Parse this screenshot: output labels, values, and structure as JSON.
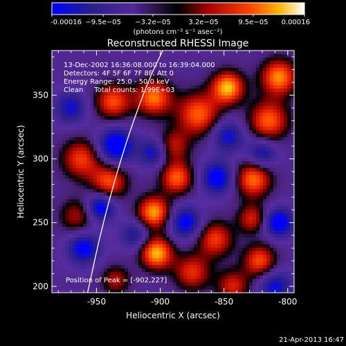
{
  "chart_data": {
    "type": "heatmap",
    "title": "Reconstructed RHESSI Image",
    "xlabel": "Heliocentric X (arcsec)",
    "ylabel": "Heliocentric Y (arcsec)",
    "xlim": [
      -985,
      -795
    ],
    "ylim": [
      195,
      385
    ],
    "xticks": [
      -950,
      -900,
      -850,
      -800
    ],
    "xtick_labels": [
      "-950",
      "-900",
      "-850",
      "-800"
    ],
    "yticks": [
      200,
      250,
      300,
      350
    ],
    "ytick_labels": [
      "200",
      "250",
      "300",
      "350"
    ],
    "colorbar": {
      "min": -0.00016,
      "max": 0.00016,
      "ticks": [
        -0.00016,
        -9.5e-05,
        -3.2e-05,
        3.2e-05,
        9.5e-05,
        0.00016
      ],
      "tick_labels": [
        "-0.00016",
        "−9.5e−05",
        "−3.2e−05",
        "3.2e−05",
        "9.5e−05",
        "0.00016"
      ],
      "units": "(photons cm⁻² s⁻¹ asec⁻²)"
    },
    "annotations": {
      "time_range": "13-Dec-2002 16:36:08.000 to 16:39:04.000",
      "detectors": "Detectors: 4F 5F 6F 7F 8F, Att 0",
      "energy": "Energy Range: 25.0 - 50.0 keV",
      "clean": "Clean     Total counts: 1.99E+03",
      "peak": "Position of Peak = [-902,227]",
      "date_stamp": "21-Apr-2013 16:47"
    },
    "peak": {
      "x": -902,
      "y": 227
    },
    "blobs": [
      {
        "x": -903,
        "y": 226,
        "r": 9,
        "v": 1.0
      },
      {
        "x": -905,
        "y": 258,
        "r": 9,
        "v": 0.95
      },
      {
        "x": -887,
        "y": 285,
        "r": 9,
        "v": 0.8
      },
      {
        "x": -940,
        "y": 282,
        "r": 10,
        "v": 0.75
      },
      {
        "x": -962,
        "y": 300,
        "r": 11,
        "v": 0.7
      },
      {
        "x": -937,
        "y": 345,
        "r": 10,
        "v": 0.75
      },
      {
        "x": -905,
        "y": 348,
        "r": 10,
        "v": 0.85
      },
      {
        "x": -870,
        "y": 335,
        "r": 12,
        "v": 0.8
      },
      {
        "x": -847,
        "y": 356,
        "r": 9,
        "v": 1.0
      },
      {
        "x": -807,
        "y": 364,
        "r": 10,
        "v": 0.9
      },
      {
        "x": -815,
        "y": 330,
        "r": 11,
        "v": 0.8
      },
      {
        "x": -827,
        "y": 284,
        "r": 10,
        "v": 0.85
      },
      {
        "x": -828,
        "y": 253,
        "r": 8,
        "v": 0.6
      },
      {
        "x": -857,
        "y": 237,
        "r": 10,
        "v": 0.7
      },
      {
        "x": -822,
        "y": 220,
        "r": 9,
        "v": 0.75
      },
      {
        "x": -875,
        "y": 211,
        "r": 10,
        "v": 0.65
      },
      {
        "x": -843,
        "y": 200,
        "r": 9,
        "v": 0.6
      },
      {
        "x": -935,
        "y": 205,
        "r": 8,
        "v": 0.5
      },
      {
        "x": -890,
        "y": 310,
        "r": 9,
        "v": 0.55
      },
      {
        "x": -965,
        "y": 255,
        "r": 10,
        "v": 0.5
      },
      {
        "x": -960,
        "y": 230,
        "r": 9,
        "v": -0.7
      },
      {
        "x": -935,
        "y": 310,
        "r": 10,
        "v": -0.85
      },
      {
        "x": -947,
        "y": 262,
        "r": 8,
        "v": -0.8
      },
      {
        "x": -905,
        "y": 305,
        "r": 8,
        "v": -0.6
      },
      {
        "x": -880,
        "y": 250,
        "r": 9,
        "v": -0.7
      },
      {
        "x": -855,
        "y": 285,
        "r": 9,
        "v": -0.75
      },
      {
        "x": -820,
        "y": 304,
        "r": 8,
        "v": -0.6
      },
      {
        "x": -807,
        "y": 250,
        "r": 8,
        "v": -0.8
      },
      {
        "x": -847,
        "y": 318,
        "r": 9,
        "v": -0.6
      },
      {
        "x": -920,
        "y": 240,
        "r": 8,
        "v": -0.5
      },
      {
        "x": -970,
        "y": 340,
        "r": 9,
        "v": -0.55
      },
      {
        "x": -810,
        "y": 200,
        "r": 9,
        "v": -0.6
      }
    ],
    "limb_curve": [
      {
        "x": -957,
        "y": 195
      },
      {
        "x": -945,
        "y": 250
      },
      {
        "x": -928,
        "y": 310
      },
      {
        "x": -910,
        "y": 360
      },
      {
        "x": -898,
        "y": 385
      }
    ],
    "grid": false,
    "legend": "none"
  }
}
